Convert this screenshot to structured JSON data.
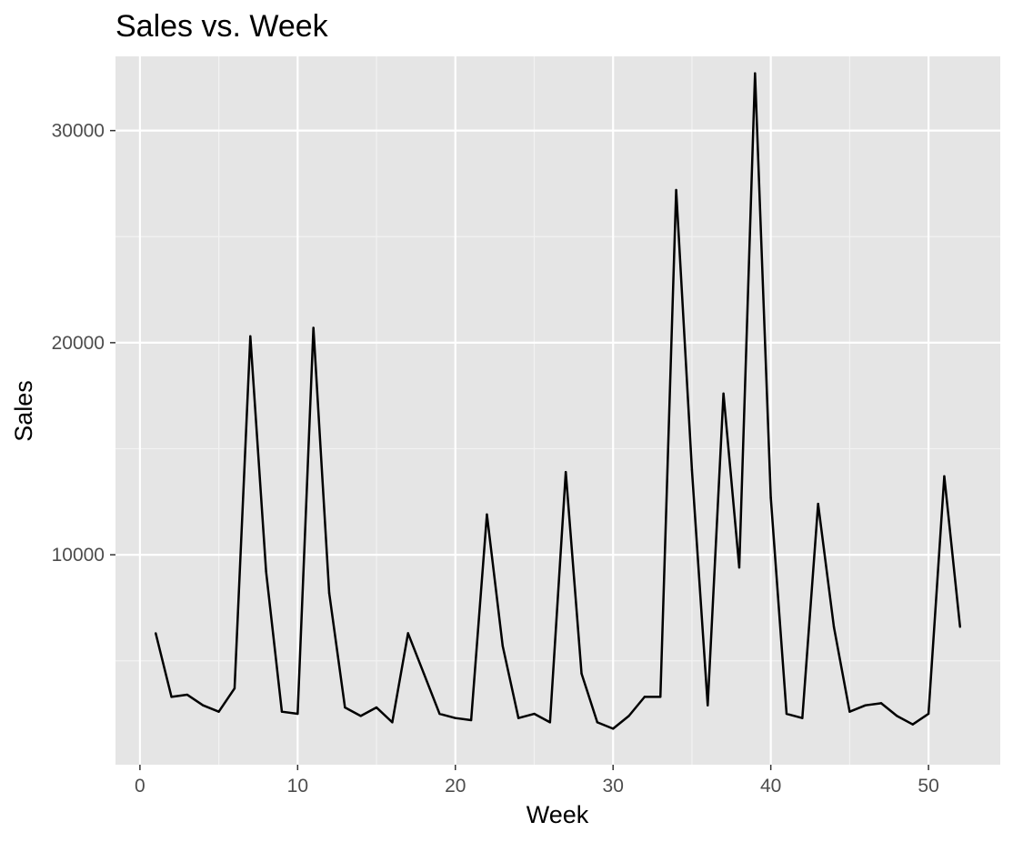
{
  "chart_data": {
    "type": "line",
    "title": "Sales vs. Week",
    "xlabel": "Week",
    "ylabel": "Sales",
    "xlim": [
      -1.55,
      54.55
    ],
    "ylim": [
      100,
      33500
    ],
    "x_ticks": [
      0,
      10,
      20,
      30,
      40,
      50
    ],
    "x_tick_labels": [
      "0",
      "10",
      "20",
      "30",
      "40",
      "50"
    ],
    "y_ticks": [
      10000,
      20000,
      30000
    ],
    "y_tick_labels": [
      "10000",
      "20000",
      "30000"
    ],
    "grid": true,
    "legend": "none",
    "colors": {
      "panel_background": "#e5e5e5",
      "grid_major": "#ffffff",
      "grid_minor": "#f2f2f2",
      "line": "#000000",
      "tick_label": "#4d4d4d",
      "title": "#000000"
    },
    "series": [
      {
        "x": [
          1,
          2,
          3,
          4,
          5,
          6,
          7,
          8,
          9,
          10,
          11,
          12,
          13,
          14,
          15,
          16,
          17,
          18,
          19,
          20,
          21,
          22,
          23,
          24,
          25,
          26,
          27,
          28,
          29,
          30,
          31,
          32,
          33,
          34,
          35,
          36,
          37,
          38,
          39,
          40,
          41,
          42,
          43,
          44,
          45,
          46,
          47,
          48,
          49,
          50,
          51,
          52
        ],
        "values": [
          6300,
          3300,
          3400,
          2900,
          2600,
          3700,
          20300,
          9200,
          2600,
          2500,
          20700,
          8200,
          2800,
          2400,
          2800,
          2100,
          6300,
          4400,
          2500,
          2300,
          2200,
          11900,
          5700,
          2300,
          2500,
          2100,
          13900,
          4400,
          2100,
          1800,
          2400,
          3300,
          3300,
          27200,
          14000,
          2900,
          17600,
          9400,
          32700,
          12700,
          2500,
          2300,
          12400,
          6600,
          2600,
          2900,
          3000,
          2400,
          2000,
          2500,
          13700,
          6600
        ]
      }
    ]
  }
}
